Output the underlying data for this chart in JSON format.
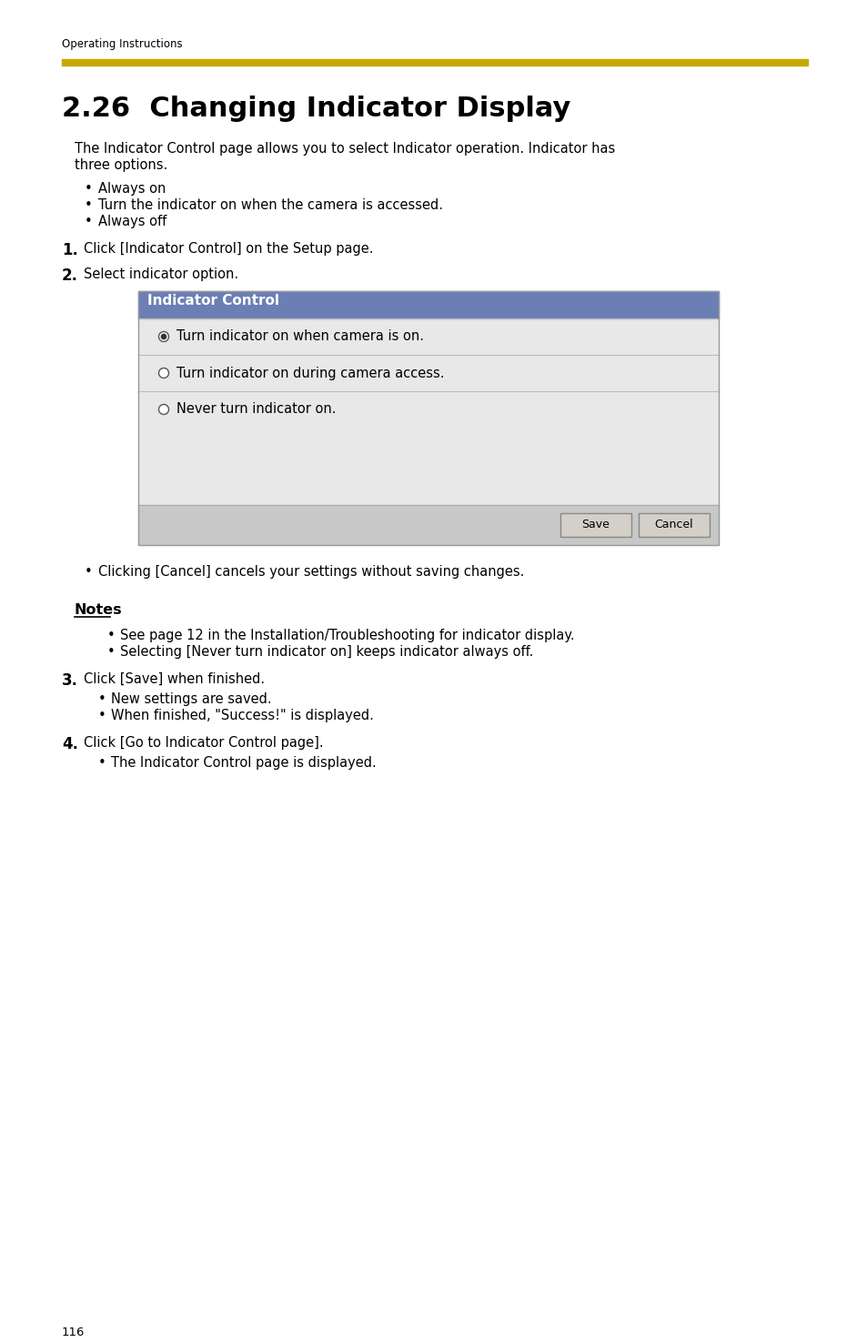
{
  "page_bg": "#ffffff",
  "top_label": "Operating Instructions",
  "gold_bar_color": "#C8A800",
  "title": "2.26  Changing Indicator Display",
  "intro_line1": "The Indicator Control page allows you to select Indicator operation. Indicator has",
  "intro_line2": "three options.",
  "bullet_items": [
    "Always on",
    "Turn the indicator on when the camera is accessed.",
    "Always off"
  ],
  "step1_num": "1.",
  "step1": "Click [Indicator Control] on the Setup page.",
  "step2_num": "2.",
  "step2": "Select indicator option.",
  "ui_header": "Indicator Control",
  "ui_header_bg": "#6B7FB5",
  "ui_header_text": "#ffffff",
  "ui_row1": "Turn indicator on when camera is on.",
  "ui_row2": "Turn indicator on during camera access.",
  "ui_row3": "Never turn indicator on.",
  "ui_btn_save": "Save",
  "ui_btn_cancel": "Cancel",
  "ui_btn_bg": "#D4D0C8",
  "cancel_bullet": "Clicking [Cancel] cancels your settings without saving changes.",
  "notes_title": "Notes",
  "note1": "See page 12 in the Installation/Troubleshooting for indicator display.",
  "note2": "Selecting [Never turn indicator on] keeps indicator always off.",
  "step3_num": "3.",
  "step3": "Click [Save] when finished.",
  "step3_b1": "New settings are saved.",
  "step3_b2": "When finished, \"Success!\" is displayed.",
  "step4_num": "4.",
  "step4": "Click [Go to Indicator Control page].",
  "step4_b1": "The Indicator Control page is displayed.",
  "page_number": "116",
  "text_color": "#000000",
  "body_fs": 10.5,
  "title_fs": 22,
  "step_fs": 12
}
